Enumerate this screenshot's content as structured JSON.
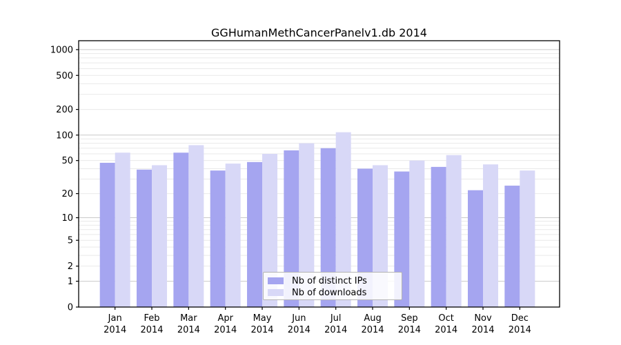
{
  "chart_data": {
    "type": "bar",
    "title": "GGHumanMethCancerPanelv1.db 2014",
    "categories": [
      "Jan",
      "Feb",
      "Mar",
      "Apr",
      "May",
      "Jun",
      "Jul",
      "Aug",
      "Sep",
      "Oct",
      "Nov",
      "Dec"
    ],
    "category_subline": "2014",
    "series": [
      {
        "name": "Nb of distinct IPs",
        "color": "#a5a5f0",
        "values": [
          47,
          39,
          62,
          38,
          48,
          66,
          70,
          40,
          37,
          42,
          22,
          25
        ]
      },
      {
        "name": "Nb of downloads",
        "color": "#d8d8f7",
        "values": [
          62,
          44,
          76,
          46,
          60,
          80,
          108,
          44,
          50,
          58,
          45,
          38
        ]
      }
    ],
    "yscale": "log1p",
    "ylim": [
      0,
      1270
    ],
    "yticks": [
      1000,
      500,
      200,
      100,
      50,
      20,
      10,
      5,
      2,
      1,
      0
    ],
    "grid": "both",
    "legend_position": "lower-center-inside"
  },
  "colors": {
    "grid_major": "#c9c9c9",
    "grid_minor": "#e9e9e9",
    "spine": "#000000",
    "tick_text": "#000000"
  }
}
